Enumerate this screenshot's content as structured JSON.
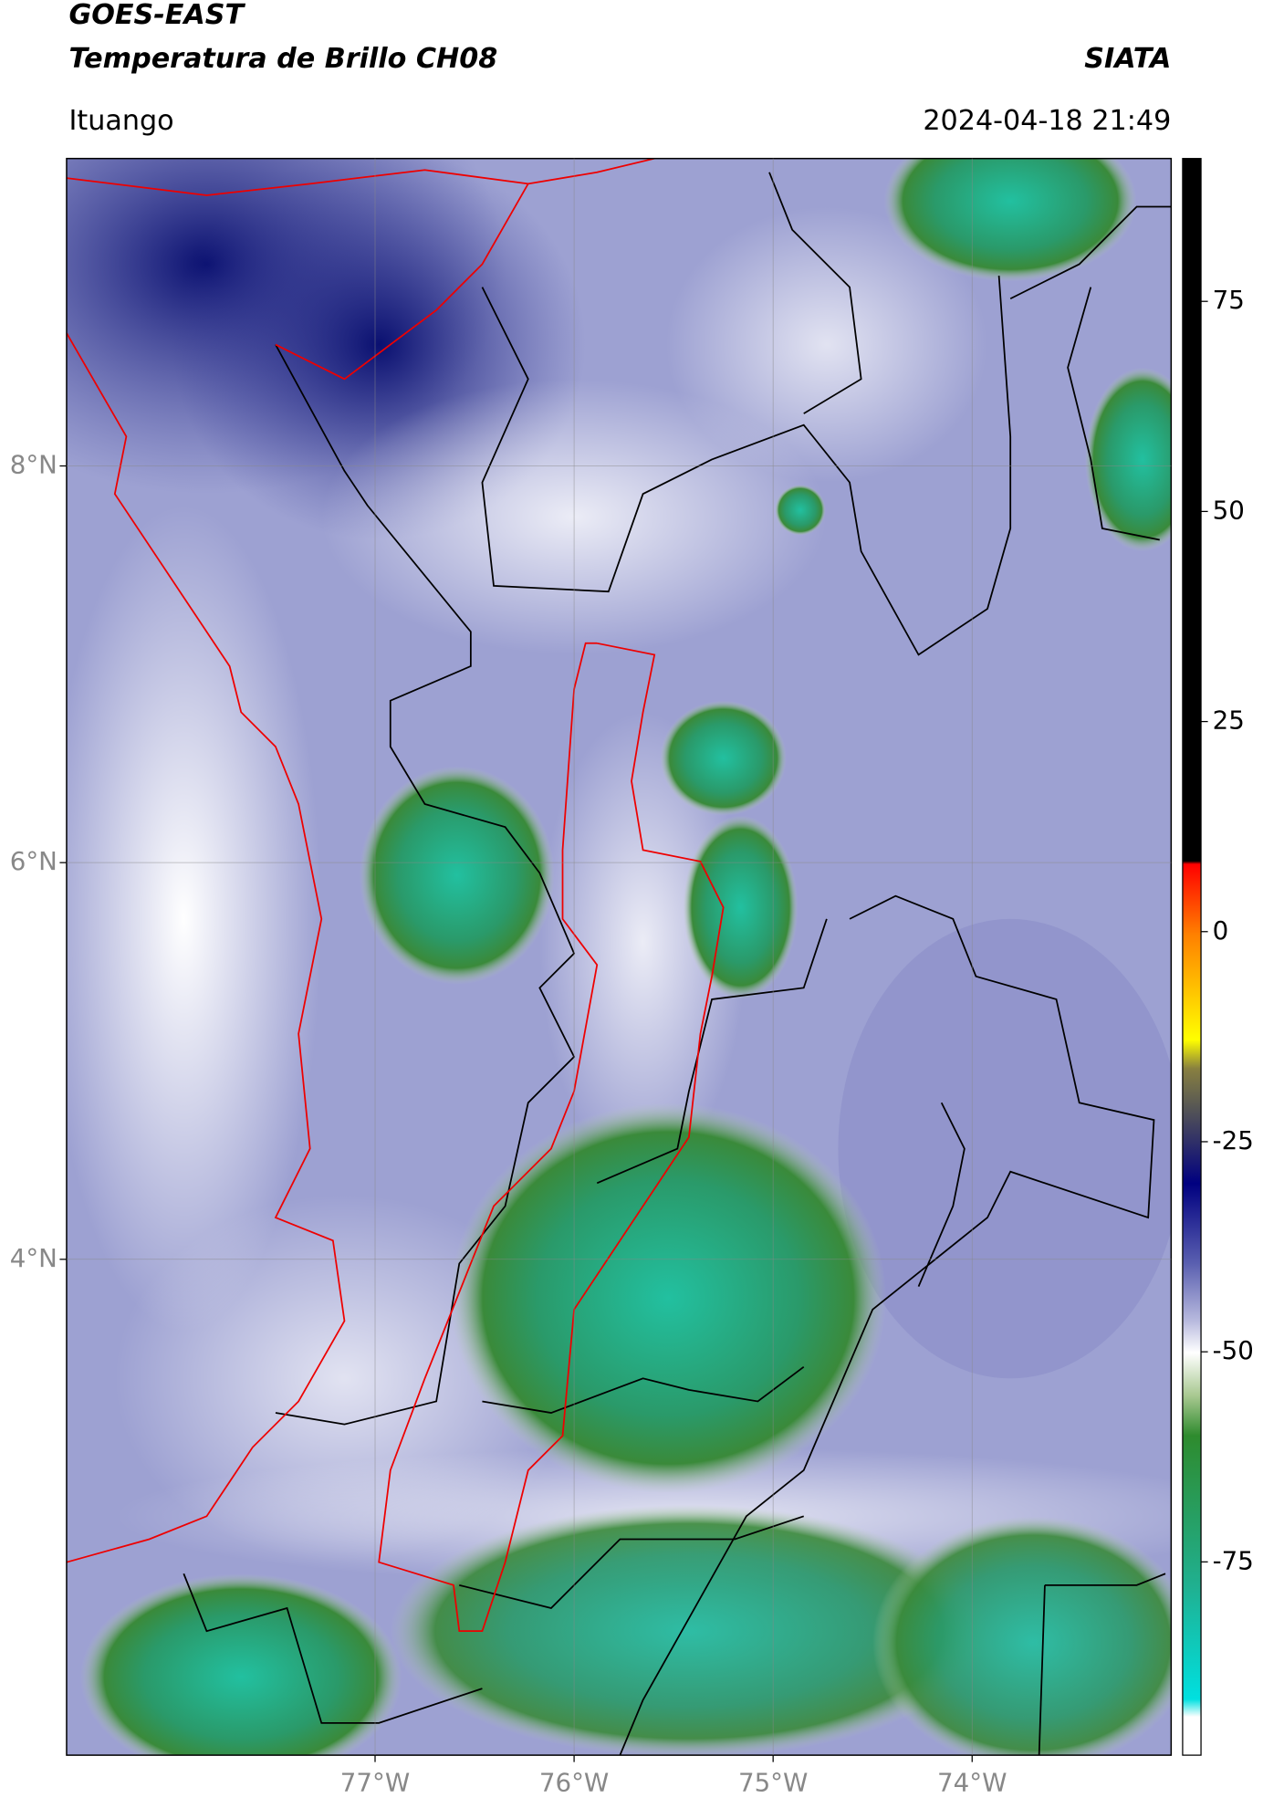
{
  "header": {
    "title": "GOES-EAST",
    "subtitle": "Temperatura de Brillo CH08",
    "brand": "SIATA",
    "location": "Ituango",
    "timestamp": "2024-04-18 21:49"
  },
  "map": {
    "xlim": [
      -78.55,
      -73.0
    ],
    "ylim": [
      1.5,
      9.55
    ],
    "xticks": [
      {
        "value": -77,
        "label": "77°W"
      },
      {
        "value": -76,
        "label": "76°W"
      },
      {
        "value": -75,
        "label": "75°W"
      },
      {
        "value": -74,
        "label": "74°W"
      }
    ],
    "yticks": [
      {
        "value": 8,
        "label": "8°N"
      },
      {
        "value": 6,
        "label": "6°N"
      },
      {
        "value": 4,
        "label": "4°N"
      }
    ],
    "grid": true
  },
  "colorbar": {
    "lim": [
      -98,
      92
    ],
    "ticks": [
      75,
      50,
      25,
      0,
      -25,
      -50,
      -75
    ]
  }
}
